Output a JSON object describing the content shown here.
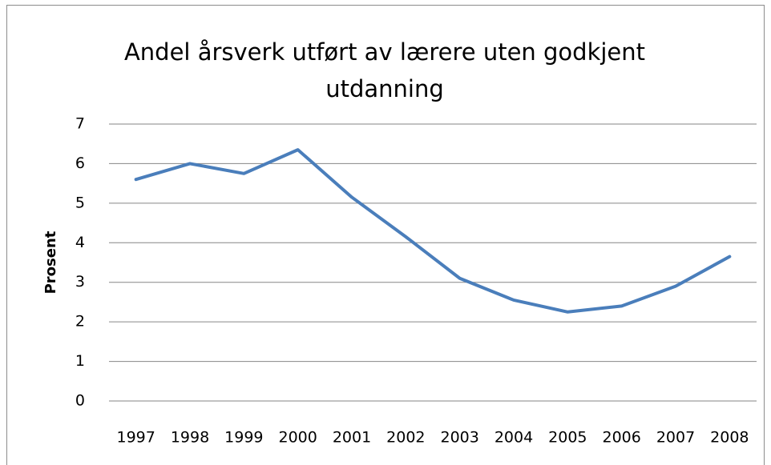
{
  "chart_data": {
    "type": "line",
    "title": "Andel årsverk utført av lærere uten godkjent utdanning",
    "y_label": "Prosent",
    "categories": [
      "1997",
      "1998",
      "1999",
      "2000",
      "2001",
      "2002",
      "2003",
      "2004",
      "2005",
      "2006",
      "2007",
      "2008"
    ],
    "series": [
      {
        "name": "Prosent",
        "color": "#4a7ebb",
        "values": [
          5.6,
          6.0,
          5.75,
          6.35,
          5.15,
          4.15,
          3.1,
          2.55,
          2.25,
          2.4,
          2.9,
          3.65
        ]
      }
    ],
    "ylim": [
      0,
      7
    ],
    "yticks": [
      0,
      1,
      2,
      3,
      4,
      5,
      6,
      7
    ],
    "grid": true,
    "legend": false
  }
}
